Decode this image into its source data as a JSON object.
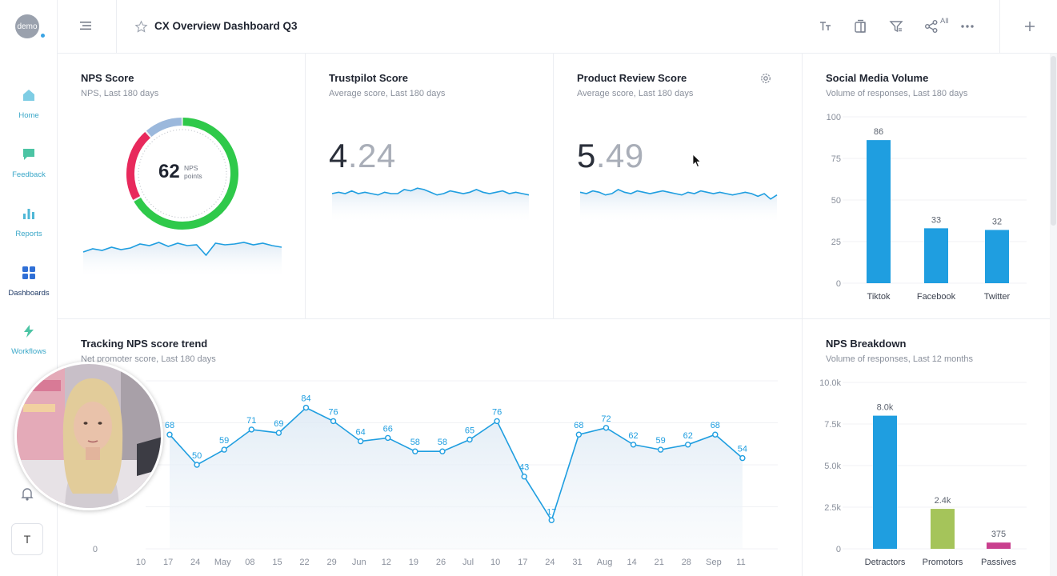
{
  "app": {
    "logo_text": "demo",
    "dashboard_title": "CX Overview Dashboard Q3",
    "share_all_label": "All",
    "user_initial": "T"
  },
  "nav": {
    "items": [
      {
        "label": "Home",
        "icon": "home-icon"
      },
      {
        "label": "Feedback",
        "icon": "chat-icon"
      },
      {
        "label": "Reports",
        "icon": "bar-chart-icon"
      },
      {
        "label": "Dashboards",
        "icon": "grid-icon"
      },
      {
        "label": "Workflows",
        "icon": "bolt-icon"
      }
    ]
  },
  "colors": {
    "accent": "#1f9ee0",
    "nps_green": "#2fc94a",
    "nps_red": "#e8295c",
    "nps_blue": "#9bb8dc",
    "promotors": "#a5c45a",
    "passives": "#c93f8e"
  },
  "nps_score": {
    "title": "NPS Score",
    "subtitle": "NPS, Last 180 days",
    "value": "62",
    "unit_line1": "NPS",
    "unit_line2": "points",
    "sparkline": [
      22,
      26,
      24,
      28,
      25,
      27,
      32,
      30,
      34,
      29,
      33,
      30,
      31,
      18,
      33,
      31,
      32,
      34,
      31,
      33,
      30,
      28
    ]
  },
  "trustpilot": {
    "title": "Trustpilot Score",
    "subtitle": "Average score, Last 180 days",
    "int_part": "4",
    "dec_part": ".24",
    "sparkline": [
      30,
      31,
      30,
      32,
      30,
      31,
      30,
      29,
      31,
      30,
      30,
      33,
      32,
      34,
      33,
      31,
      29,
      30,
      32,
      31,
      30,
      31,
      33,
      31,
      30,
      31,
      32,
      30,
      31,
      30,
      29
    ]
  },
  "product_review": {
    "title": "Product Review Score",
    "subtitle": "Average score, Last 180 days",
    "int_part": "5",
    "dec_part": ".49",
    "sparkline": [
      31,
      30,
      32,
      31,
      29,
      30,
      33,
      31,
      30,
      32,
      31,
      30,
      31,
      32,
      31,
      30,
      29,
      31,
      30,
      32,
      31,
      30,
      31,
      30,
      29,
      30,
      31,
      30,
      28,
      30,
      26,
      29
    ]
  },
  "social_media": {
    "title": "Social Media Volume",
    "subtitle": "Volume of responses, Last 180 days"
  },
  "nps_trend": {
    "title": "Tracking NPS score trend",
    "subtitle": "Net promoter score, Last 180 days"
  },
  "nps_breakdown": {
    "title": "NPS Breakdown",
    "subtitle": "Volume of responses, Last 12 months"
  },
  "chart_data": [
    {
      "id": "social_media_volume",
      "type": "bar",
      "title": "Social Media Volume",
      "categories": [
        "Tiktok",
        "Facebook",
        "Twitter"
      ],
      "values": [
        86,
        33,
        32
      ],
      "value_labels": [
        "86",
        "33",
        "32"
      ],
      "yticks": [
        "100",
        "75",
        "50",
        "25",
        "0"
      ],
      "ylim": [
        0,
        100
      ]
    },
    {
      "id": "nps_trend",
      "type": "line",
      "title": "Tracking NPS score trend",
      "x_labels": [
        "10",
        "17",
        "24",
        "May",
        "08",
        "15",
        "22",
        "29",
        "Jun",
        "12",
        "19",
        "26",
        "Jul",
        "10",
        "17",
        "24",
        "31",
        "Aug",
        "14",
        "21",
        "28",
        "Sep",
        "11"
      ],
      "values": [
        68,
        50,
        59,
        71,
        69,
        84,
        76,
        64,
        66,
        58,
        58,
        65,
        76,
        43,
        17,
        68,
        72,
        62,
        59,
        62,
        68,
        54
      ],
      "visible_yticks": [
        "0"
      ],
      "ylim": [
        0,
        100
      ]
    },
    {
      "id": "nps_breakdown",
      "type": "bar",
      "title": "NPS Breakdown",
      "categories": [
        "Detractors",
        "Promotors",
        "Passives"
      ],
      "values": [
        8000,
        2400,
        375
      ],
      "value_labels": [
        "8.0k",
        "2.4k",
        "375"
      ],
      "yticks": [
        "10.0k",
        "7.5k",
        "5.0k",
        "2.5k",
        "0"
      ],
      "ylim": [
        0,
        10000
      ]
    }
  ]
}
